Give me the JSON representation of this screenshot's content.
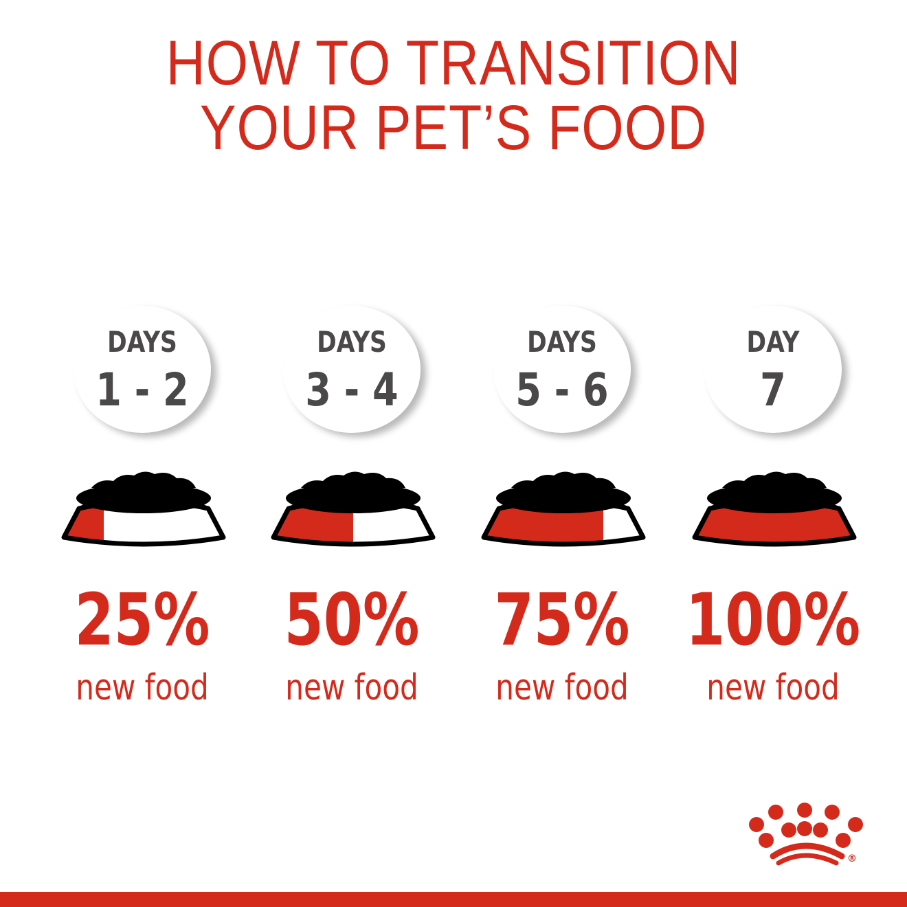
{
  "title": {
    "line1": "HOW TO TRANSITION",
    "line2": "YOUR PET’S FOOD"
  },
  "colors": {
    "brand_red": "#d42a1c",
    "text_gray": "#4a4848",
    "food": "#000000"
  },
  "steps": [
    {
      "days_label": "DAYS",
      "days_range": "1 - 2",
      "percent": "25%",
      "new_food_fraction": 0.25,
      "caption": "new food"
    },
    {
      "days_label": "DAYS",
      "days_range": "3 - 4",
      "percent": "50%",
      "new_food_fraction": 0.5,
      "caption": "new food"
    },
    {
      "days_label": "DAYS",
      "days_range": "5 - 6",
      "percent": "75%",
      "new_food_fraction": 0.75,
      "caption": "new food"
    },
    {
      "days_label": "DAY",
      "days_range": "7",
      "percent": "100%",
      "new_food_fraction": 1.0,
      "caption": "new food"
    }
  ],
  "logo": {
    "icon": "crown-icon",
    "mark": "®"
  }
}
